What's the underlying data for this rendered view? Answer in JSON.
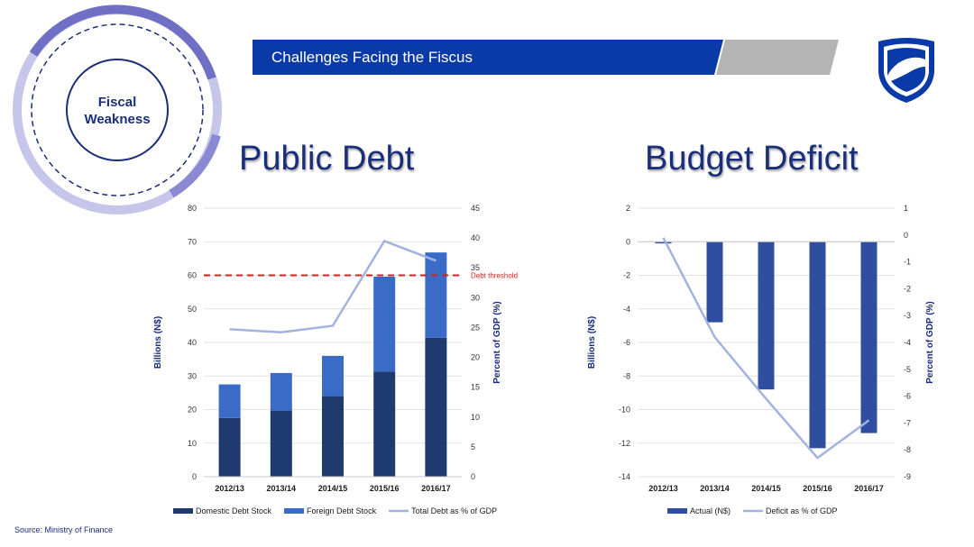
{
  "header": {
    "banner_title": "Challenges Facing the Fiscus",
    "circle_label": "Fiscal Weakness",
    "logo_icon": "shield-logo-icon",
    "colors": {
      "banner_blue": "#0a3aa8",
      "banner_gray": "#b4b4b4",
      "circle_purple": "#7070c8",
      "title_navy": "#1a2e7a"
    }
  },
  "source": "Source: Ministry of Finance",
  "chart_data": [
    {
      "type": "bar",
      "title": "Public Debt",
      "stacked": true,
      "categories": [
        "2012/13",
        "2013/14",
        "2014/15",
        "2015/16",
        "2016/17"
      ],
      "series": [
        {
          "name": "Domestic Debt Stock",
          "kind": "bar",
          "axis": "left",
          "color": "#1f3a6e",
          "values": [
            17.5,
            19.7,
            24,
            31.3,
            41.4
          ]
        },
        {
          "name": "Foreign Debt Stock",
          "kind": "bar",
          "axis": "left",
          "color": "#3a6cc7",
          "values": [
            10,
            11.2,
            12,
            28.3,
            25.4
          ]
        },
        {
          "name": "Total Debt as % of GDP",
          "kind": "line",
          "axis": "right",
          "color": "#a3b3df",
          "values": [
            24.7,
            24.2,
            25.3,
            39.5,
            36.2
          ]
        }
      ],
      "ylabel": "Billions (N$)",
      "y2label": "Percent of GDP (%)",
      "ylim": [
        0,
        80
      ],
      "yticks": [
        0,
        10,
        20,
        30,
        40,
        50,
        60,
        70,
        80
      ],
      "y2lim": [
        0,
        45
      ],
      "y2ticks": [
        0,
        5,
        10,
        15,
        20,
        25,
        30,
        35,
        40,
        45
      ],
      "threshold": {
        "label": "Debt threshold",
        "value": 60,
        "color": "#d81e1e"
      },
      "grid": true,
      "legend_position": "bottom"
    },
    {
      "type": "bar",
      "title": "Budget Deficit",
      "categories": [
        "2012/13",
        "2013/14",
        "2014/15",
        "2015/16",
        "2016/17"
      ],
      "series": [
        {
          "name": "Actual (N$)",
          "kind": "bar",
          "axis": "left",
          "color": "#2f4ea0",
          "values": [
            -0.1,
            -4.8,
            -8.8,
            -12.3,
            -11.4
          ]
        },
        {
          "name": "Deficit as % of GDP",
          "kind": "line",
          "axis": "right",
          "color": "#a3b3df",
          "values": [
            -0.1,
            -3.8,
            -6.1,
            -8.3,
            -6.9
          ]
        }
      ],
      "ylabel": "Billions (N$)",
      "y2label": "Percent of GDP (%)",
      "ylim": [
        -14,
        2
      ],
      "yticks": [
        -14,
        -12,
        -10,
        -8,
        -6,
        -4,
        -2,
        0,
        2
      ],
      "y2lim": [
        -9,
        1
      ],
      "y2ticks": [
        -9,
        -8,
        -7,
        -6,
        -5,
        -4,
        -3,
        -2,
        -1,
        0,
        1
      ],
      "grid": true,
      "legend_position": "bottom"
    }
  ]
}
